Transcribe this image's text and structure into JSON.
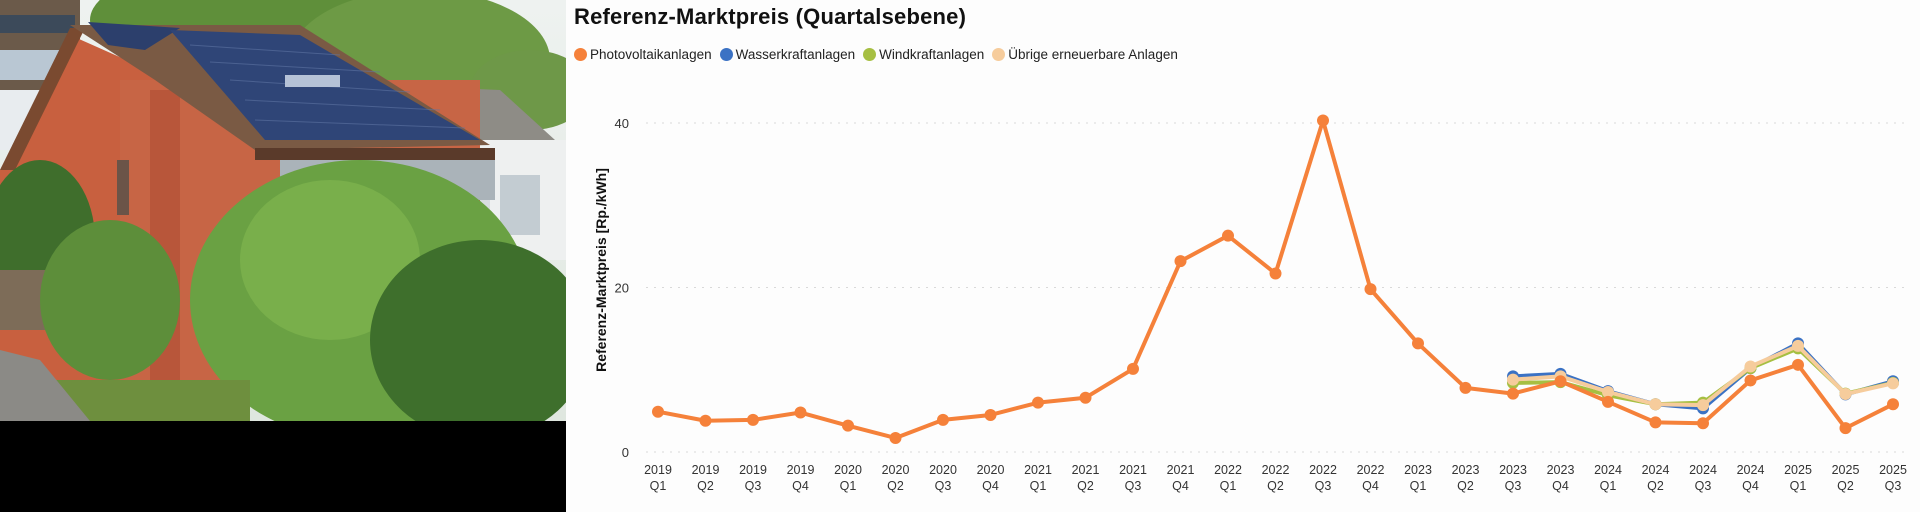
{
  "photo": {
    "description": "Red-brick house with solar panels on roof, surrounded by trees"
  },
  "chart_data": {
    "type": "line",
    "title": "Referenz-Marktpreis (Quartalsebene)",
    "xlabel": "",
    "ylabel": "Referenz-Marktpreis [Rp./kWh]",
    "ylim": [
      0,
      40
    ],
    "yticks": [
      0,
      20,
      40
    ],
    "grid": true,
    "legend_position": "top-left",
    "categories": [
      "2019 Q1",
      "2019 Q2",
      "2019 Q3",
      "2019 Q4",
      "2020 Q1",
      "2020 Q2",
      "2020 Q3",
      "2020 Q4",
      "2021 Q1",
      "2021 Q2",
      "2021 Q3",
      "2021 Q4",
      "2022 Q1",
      "2022 Q2",
      "2022 Q3",
      "2022 Q4",
      "2023 Q1",
      "2023 Q2",
      "2023 Q3",
      "2023 Q4",
      "2024 Q1",
      "2024 Q2",
      "2024 Q3",
      "2024 Q4",
      "2025 Q1",
      "2025 Q2",
      "2025 Q3"
    ],
    "series": [
      {
        "name": "Photovoltaikanlagen",
        "color": "#F5813A",
        "values": [
          4.9,
          3.8,
          3.9,
          4.8,
          3.2,
          1.7,
          3.9,
          4.5,
          6.0,
          6.6,
          10.1,
          23.2,
          26.3,
          21.7,
          40.3,
          19.8,
          13.2,
          7.8,
          7.1,
          8.6,
          6.1,
          3.6,
          3.5,
          8.7,
          10.6,
          2.9,
          5.8
        ]
      },
      {
        "name": "Wasserkraftanlagen",
        "color": "#3B72C4",
        "values": [
          null,
          null,
          null,
          null,
          null,
          null,
          null,
          null,
          null,
          null,
          null,
          null,
          null,
          null,
          null,
          null,
          null,
          null,
          9.2,
          9.5,
          7.4,
          5.8,
          5.3,
          10.2,
          13.2,
          7.0,
          8.6
        ]
      },
      {
        "name": "Windkraftanlagen",
        "color": "#A6BF42",
        "values": [
          null,
          null,
          null,
          null,
          null,
          null,
          null,
          null,
          null,
          null,
          null,
          null,
          null,
          null,
          null,
          null,
          null,
          null,
          8.4,
          8.5,
          6.9,
          5.8,
          6.0,
          10.2,
          12.6,
          7.1,
          8.4
        ]
      },
      {
        "name": "Übrige erneuerbare Anlagen",
        "color": "#F6CC9C",
        "values": [
          null,
          null,
          null,
          null,
          null,
          null,
          null,
          null,
          null,
          null,
          null,
          null,
          null,
          null,
          null,
          null,
          null,
          null,
          8.8,
          9.2,
          7.3,
          5.8,
          5.7,
          10.4,
          12.9,
          7.05,
          8.35
        ]
      }
    ]
  }
}
